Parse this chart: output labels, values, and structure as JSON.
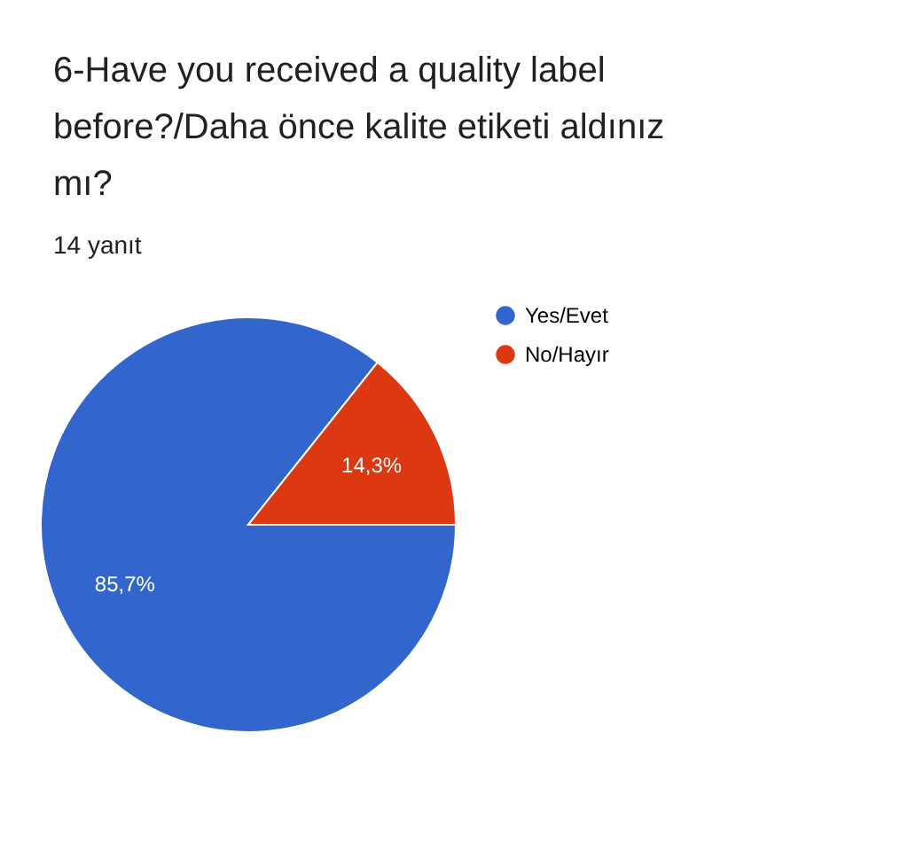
{
  "chart_data": {
    "type": "pie",
    "title": "6-Have you received a quality label before?/Daha önce kalite etiketi aldınız mı?",
    "subtitle": "14 yanıt",
    "categories": [
      "Yes/Evet",
      "No/Hayır"
    ],
    "values": [
      85.7,
      14.3
    ],
    "colors": [
      "#3366cc",
      "#dc3912"
    ],
    "value_labels": [
      "85,7%",
      "14,3%"
    ],
    "legend": "right"
  }
}
